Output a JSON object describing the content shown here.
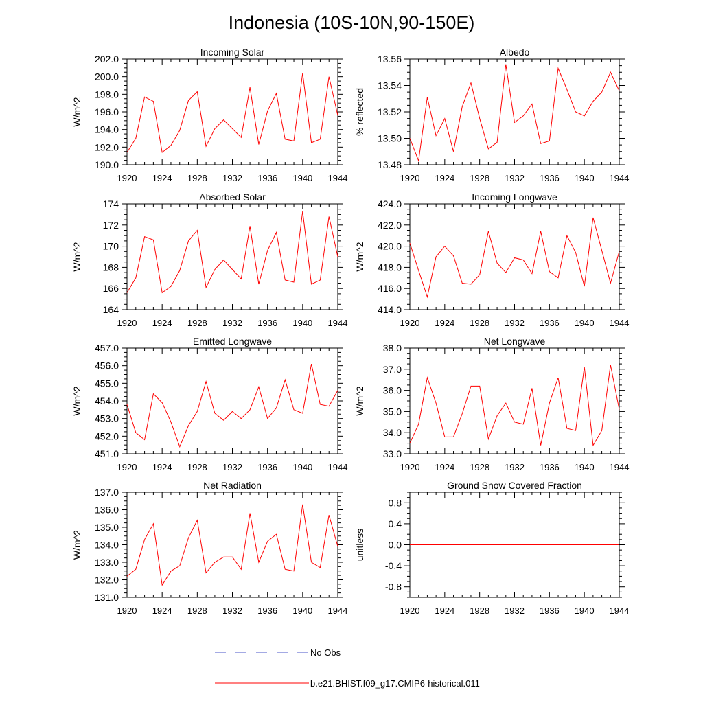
{
  "figure": {
    "title": "Indonesia (10S-10N,90-150E)",
    "legend": [
      {
        "label": "No Obs",
        "color": "#4a55c8",
        "style": "dashed"
      },
      {
        "label": "b.e21.BHIST.f09_g17.CMIP6-historical.011",
        "color": "#ff0000",
        "style": "solid"
      }
    ]
  },
  "chart_data": [
    {
      "type": "line",
      "title": "Incoming Solar",
      "ylabel": "W/m^2",
      "xlim": [
        1920,
        1944
      ],
      "ylim": [
        190,
        202
      ],
      "xticks": [
        "1920",
        "1924",
        "1928",
        "1932",
        "1936",
        "1940",
        "1944"
      ],
      "yticks": [
        "190.0",
        "192.0",
        "194.0",
        "196.0",
        "198.0",
        "200.0",
        "202.0"
      ],
      "x": [
        1920,
        1921,
        1922,
        1923,
        1924,
        1925,
        1926,
        1927,
        1928,
        1929,
        1930,
        1931,
        1932,
        1933,
        1934,
        1935,
        1936,
        1937,
        1938,
        1939,
        1940,
        1941,
        1942,
        1943,
        1944
      ],
      "series": [
        {
          "values": [
            191.4,
            193.0,
            197.7,
            197.2,
            191.4,
            192.2,
            193.9,
            197.3,
            198.3,
            192.1,
            194.1,
            195.1,
            194.1,
            193.1,
            198.8,
            192.3,
            196.1,
            198.1,
            192.9,
            192.7,
            200.4,
            192.5,
            192.9,
            200.0,
            195.6
          ],
          "color": "#ff0000"
        }
      ]
    },
    {
      "type": "line",
      "title": "Albedo",
      "ylabel": "% reflected",
      "xlim": [
        1920,
        1944
      ],
      "ylim": [
        13.48,
        13.56
      ],
      "xticks": [
        "1920",
        "1924",
        "1928",
        "1932",
        "1936",
        "1940",
        "1944"
      ],
      "yticks": [
        "13.48",
        "13.50",
        "13.52",
        "13.54",
        "13.56"
      ],
      "x": [
        1920,
        1921,
        1922,
        1923,
        1924,
        1925,
        1926,
        1927,
        1928,
        1929,
        1930,
        1931,
        1932,
        1933,
        1934,
        1935,
        1936,
        1937,
        1938,
        1939,
        1940,
        1941,
        1942,
        1943,
        1944
      ],
      "series": [
        {
          "values": [
            13.5,
            13.483,
            13.531,
            13.502,
            13.515,
            13.49,
            13.524,
            13.542,
            13.515,
            13.492,
            13.497,
            13.556,
            13.512,
            13.517,
            13.526,
            13.496,
            13.498,
            13.553,
            13.537,
            13.52,
            13.517,
            13.528,
            13.535,
            13.55,
            13.536
          ],
          "color": "#ff0000"
        }
      ]
    },
    {
      "type": "line",
      "title": "Absorbed Solar",
      "ylabel": "W/m^2",
      "xlim": [
        1920,
        1944
      ],
      "ylim": [
        164,
        174
      ],
      "xticks": [
        "1920",
        "1924",
        "1928",
        "1932",
        "1936",
        "1940",
        "1944"
      ],
      "yticks": [
        "164",
        "166",
        "168",
        "170",
        "172",
        "174"
      ],
      "x": [
        1920,
        1921,
        1922,
        1923,
        1924,
        1925,
        1926,
        1927,
        1928,
        1929,
        1930,
        1931,
        1932,
        1933,
        1934,
        1935,
        1936,
        1937,
        1938,
        1939,
        1940,
        1941,
        1942,
        1943,
        1944
      ],
      "series": [
        {
          "values": [
            165.6,
            167.0,
            170.9,
            170.6,
            165.6,
            166.2,
            167.7,
            170.5,
            171.5,
            166.1,
            167.8,
            168.7,
            167.8,
            166.9,
            171.9,
            166.4,
            169.6,
            171.3,
            166.8,
            166.6,
            173.3,
            166.4,
            166.8,
            172.8,
            169.0
          ],
          "color": "#ff0000"
        }
      ]
    },
    {
      "type": "line",
      "title": "Incoming Longwave",
      "ylabel": "W/m^2",
      "xlim": [
        1920,
        1944
      ],
      "ylim": [
        414,
        424
      ],
      "xticks": [
        "1920",
        "1924",
        "1928",
        "1932",
        "1936",
        "1940",
        "1944"
      ],
      "yticks": [
        "414.0",
        "416.0",
        "418.0",
        "420.0",
        "422.0",
        "424.0"
      ],
      "x": [
        1920,
        1921,
        1922,
        1923,
        1924,
        1925,
        1926,
        1927,
        1928,
        1929,
        1930,
        1931,
        1932,
        1933,
        1934,
        1935,
        1936,
        1937,
        1938,
        1939,
        1940,
        1941,
        1942,
        1943,
        1944
      ],
      "series": [
        {
          "values": [
            420.3,
            417.7,
            415.2,
            419.0,
            420.0,
            419.1,
            416.5,
            416.4,
            417.3,
            421.4,
            418.4,
            417.5,
            418.9,
            418.7,
            417.4,
            421.4,
            417.6,
            417.0,
            421.0,
            419.4,
            416.2,
            422.7,
            419.6,
            416.5,
            419.5
          ],
          "color": "#ff0000"
        }
      ]
    },
    {
      "type": "line",
      "title": "Emitted Longwave",
      "ylabel": "W/m^2",
      "xlim": [
        1920,
        1944
      ],
      "ylim": [
        451,
        457
      ],
      "xticks": [
        "1920",
        "1924",
        "1928",
        "1932",
        "1936",
        "1940",
        "1944"
      ],
      "yticks": [
        "451.0",
        "452.0",
        "453.0",
        "454.0",
        "455.0",
        "456.0",
        "457.0"
      ],
      "x": [
        1920,
        1921,
        1922,
        1923,
        1924,
        1925,
        1926,
        1927,
        1928,
        1929,
        1930,
        1931,
        1932,
        1933,
        1934,
        1935,
        1936,
        1937,
        1938,
        1939,
        1940,
        1941,
        1942,
        1943,
        1944
      ],
      "series": [
        {
          "values": [
            453.8,
            452.2,
            451.8,
            454.4,
            453.9,
            452.8,
            451.4,
            452.6,
            453.4,
            455.1,
            453.3,
            452.9,
            453.4,
            453.0,
            453.5,
            454.8,
            453.0,
            453.6,
            455.2,
            453.5,
            453.3,
            456.1,
            453.8,
            453.7,
            454.6
          ],
          "color": "#ff0000"
        }
      ]
    },
    {
      "type": "line",
      "title": "Net Longwave",
      "ylabel": "W/m^2",
      "xlim": [
        1920,
        1944
      ],
      "ylim": [
        33,
        38
      ],
      "xticks": [
        "1920",
        "1924",
        "1928",
        "1932",
        "1936",
        "1940",
        "1944"
      ],
      "yticks": [
        "33.0",
        "34.0",
        "35.0",
        "36.0",
        "37.0",
        "38.0"
      ],
      "x": [
        1920,
        1921,
        1922,
        1923,
        1924,
        1925,
        1926,
        1927,
        1928,
        1929,
        1930,
        1931,
        1932,
        1933,
        1934,
        1935,
        1936,
        1937,
        1938,
        1939,
        1940,
        1941,
        1942,
        1943,
        1944
      ],
      "series": [
        {
          "values": [
            33.5,
            34.4,
            36.6,
            35.4,
            33.8,
            33.8,
            34.9,
            36.2,
            36.2,
            33.7,
            34.8,
            35.4,
            34.5,
            34.4,
            36.1,
            33.4,
            35.4,
            36.6,
            34.2,
            34.1,
            37.1,
            33.4,
            34.1,
            37.2,
            35.1
          ],
          "color": "#ff0000"
        }
      ]
    },
    {
      "type": "line",
      "title": "Net Radiation",
      "ylabel": "W/m^2",
      "xlim": [
        1920,
        1944
      ],
      "ylim": [
        131,
        137
      ],
      "xticks": [
        "1920",
        "1924",
        "1928",
        "1932",
        "1936",
        "1940",
        "1944"
      ],
      "yticks": [
        "131.0",
        "132.0",
        "133.0",
        "134.0",
        "135.0",
        "136.0",
        "137.0"
      ],
      "x": [
        1920,
        1921,
        1922,
        1923,
        1924,
        1925,
        1926,
        1927,
        1928,
        1929,
        1930,
        1931,
        1932,
        1933,
        1934,
        1935,
        1936,
        1937,
        1938,
        1939,
        1940,
        1941,
        1942,
        1943,
        1944
      ],
      "series": [
        {
          "values": [
            132.2,
            132.6,
            134.3,
            135.2,
            131.7,
            132.5,
            132.8,
            134.4,
            135.4,
            132.4,
            133.0,
            133.3,
            133.3,
            132.6,
            135.8,
            133.0,
            134.2,
            134.6,
            132.6,
            132.5,
            136.3,
            133.0,
            132.7,
            135.7,
            133.9
          ],
          "color": "#ff0000"
        }
      ]
    },
    {
      "type": "line",
      "title": "Ground Snow Covered Fraction",
      "ylabel": "unitless",
      "xlim": [
        1920,
        1944
      ],
      "ylim": [
        -1,
        1
      ],
      "xticks": [
        "1920",
        "1924",
        "1928",
        "1932",
        "1936",
        "1940",
        "1944"
      ],
      "yticks": [
        "-0.8",
        "-0.4",
        "0.0",
        "0.4",
        "0.8"
      ],
      "x": [
        1920,
        1921,
        1922,
        1923,
        1924,
        1925,
        1926,
        1927,
        1928,
        1929,
        1930,
        1931,
        1932,
        1933,
        1934,
        1935,
        1936,
        1937,
        1938,
        1939,
        1940,
        1941,
        1942,
        1943,
        1944
      ],
      "series": [
        {
          "values": [
            0,
            0,
            0,
            0,
            0,
            0,
            0,
            0,
            0,
            0,
            0,
            0,
            0,
            0,
            0,
            0,
            0,
            0,
            0,
            0,
            0,
            0,
            0,
            0,
            0
          ],
          "color": "#ff0000"
        }
      ]
    }
  ]
}
